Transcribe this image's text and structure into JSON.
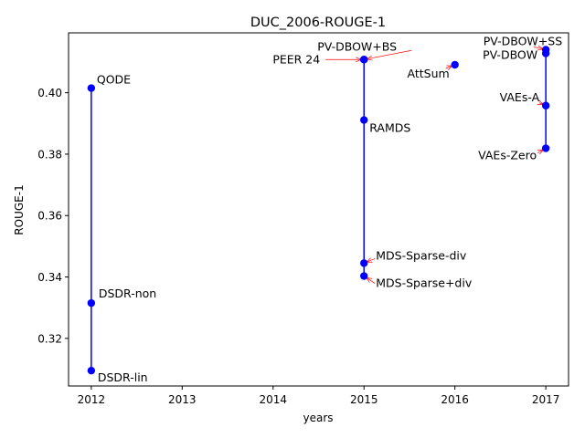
{
  "chart_data": {
    "type": "scatter",
    "title": "DUC_2006-ROUGE-1",
    "xlabel": "years",
    "ylabel": "ROUGE-1",
    "xlim": [
      2011.75,
      2017.25
    ],
    "ylim": [
      0.3045,
      0.4195
    ],
    "x_ticks": [
      2012,
      2013,
      2014,
      2015,
      2016,
      2017
    ],
    "y_ticks": [
      0.32,
      0.34,
      0.36,
      0.38,
      0.4
    ],
    "y_tick_labels": [
      "0.32",
      "0.34",
      "0.36",
      "0.38",
      "0.40"
    ],
    "grid": false,
    "colors": {
      "point": "#0000ff",
      "line": "#0000ff",
      "arrow": "#ff0000"
    },
    "vertical_lines": [
      {
        "x": 2012,
        "y_min": 0.3095,
        "y_max": 0.4015
      },
      {
        "x": 2015,
        "y_min": 0.3403,
        "y_max": 0.4108
      },
      {
        "x": 2017,
        "y_min": 0.3819,
        "y_max": 0.414
      }
    ],
    "points": [
      {
        "label": "QODE",
        "x": 2012,
        "y": 0.4015,
        "anchor": "start",
        "arrow": false
      },
      {
        "label": "DSDR-non",
        "x": 2012,
        "y": 0.3315,
        "anchor": "start",
        "arrow": false
      },
      {
        "label": "DSDR-lin",
        "x": 2012,
        "y": 0.3095,
        "anchor": "start",
        "arrow": false
      },
      {
        "label": "PEER 24",
        "x": 2015,
        "y": 0.4108,
        "anchor": "end",
        "arrow": true
      },
      {
        "label": "PV-DBOW+BS",
        "x": 2015,
        "y": 0.4108,
        "anchor": "start",
        "arrow": true
      },
      {
        "label": "RAMDS",
        "x": 2015,
        "y": 0.3911,
        "anchor": "start",
        "arrow": false
      },
      {
        "label": "MDS-Sparse-div",
        "x": 2015,
        "y": 0.3445,
        "anchor": "start",
        "arrow": true
      },
      {
        "label": "MDS-Sparse+div",
        "x": 2015,
        "y": 0.3403,
        "anchor": "start",
        "arrow": true
      },
      {
        "label": "AttSum",
        "x": 2016,
        "y": 0.4091,
        "anchor": "end",
        "arrow": true
      },
      {
        "label": "PV-DBOW+SS",
        "x": 2017,
        "y": 0.414,
        "anchor": "end",
        "arrow": true
      },
      {
        "label": "PV-DBOW",
        "x": 2017,
        "y": 0.4128,
        "anchor": "end",
        "arrow": false
      },
      {
        "label": "VAEs-A",
        "x": 2017,
        "y": 0.3958,
        "anchor": "end",
        "arrow": true
      },
      {
        "label": "VAEs-Zero",
        "x": 2017,
        "y": 0.3819,
        "anchor": "end",
        "arrow": true
      }
    ]
  }
}
